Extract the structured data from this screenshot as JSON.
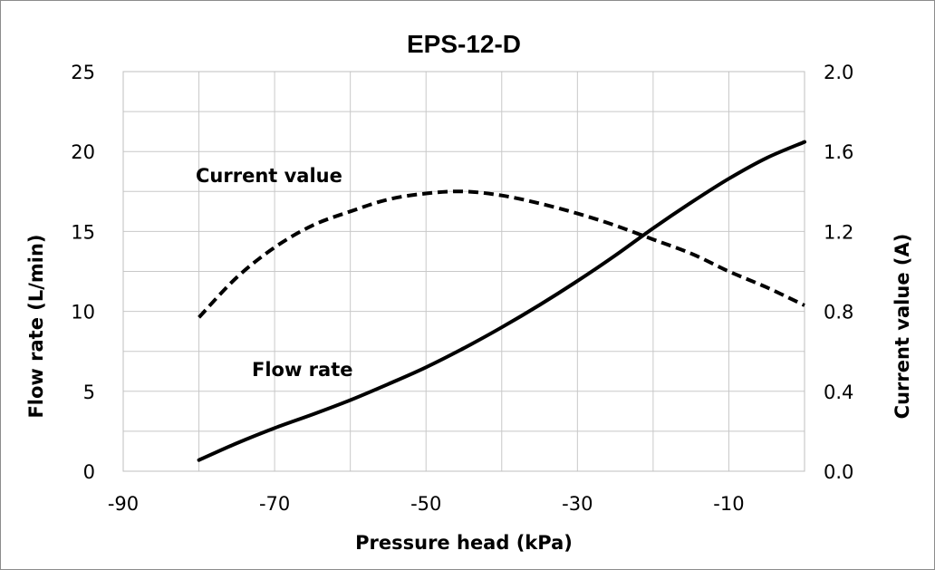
{
  "chart_data": {
    "type": "line",
    "title": "EPS-12-D",
    "xlabel": "Pressure head (kPa)",
    "ylabel": "Flow rate (L/min)",
    "y2label": "Current value (A)",
    "xlim": [
      -90,
      0
    ],
    "ylim": [
      0,
      25
    ],
    "y2lim": [
      0,
      2.0
    ],
    "xticks": [
      "-90",
      "-70",
      "-50",
      "-30",
      "-10"
    ],
    "yticks": [
      "0",
      "5",
      "10",
      "15",
      "20",
      "25"
    ],
    "y2ticks": [
      "0.0",
      "0.4",
      "0.8",
      "1.2",
      "1.6",
      "2.0"
    ],
    "grid": true,
    "legend": "none",
    "series": [
      {
        "name": "Flow rate",
        "axis": "left",
        "style": "solid",
        "color": "#000000",
        "x": [
          -80,
          -75,
          -70,
          -65,
          -60,
          -55,
          -50,
          -45,
          -40,
          -35,
          -30,
          -25,
          -20,
          -15,
          -10,
          -5,
          0
        ],
        "values": [
          0.7,
          1.75,
          2.7,
          3.55,
          4.45,
          5.45,
          6.5,
          7.7,
          9.0,
          10.4,
          11.9,
          13.5,
          15.2,
          16.8,
          18.3,
          19.6,
          20.6
        ]
      },
      {
        "name": "Current value",
        "axis": "right",
        "style": "dashed",
        "color": "#000000",
        "x": [
          -80,
          -75,
          -70,
          -65,
          -60,
          -55,
          -50,
          -45,
          -40,
          -35,
          -30,
          -25,
          -20,
          -15,
          -10,
          -5,
          0
        ],
        "values": [
          0.77,
          0.97,
          1.12,
          1.23,
          1.3,
          1.36,
          1.39,
          1.4,
          1.38,
          1.34,
          1.29,
          1.23,
          1.16,
          1.09,
          1.0,
          0.92,
          0.83
        ]
      }
    ],
    "annotations": [
      "Current value",
      "Flow rate"
    ]
  }
}
